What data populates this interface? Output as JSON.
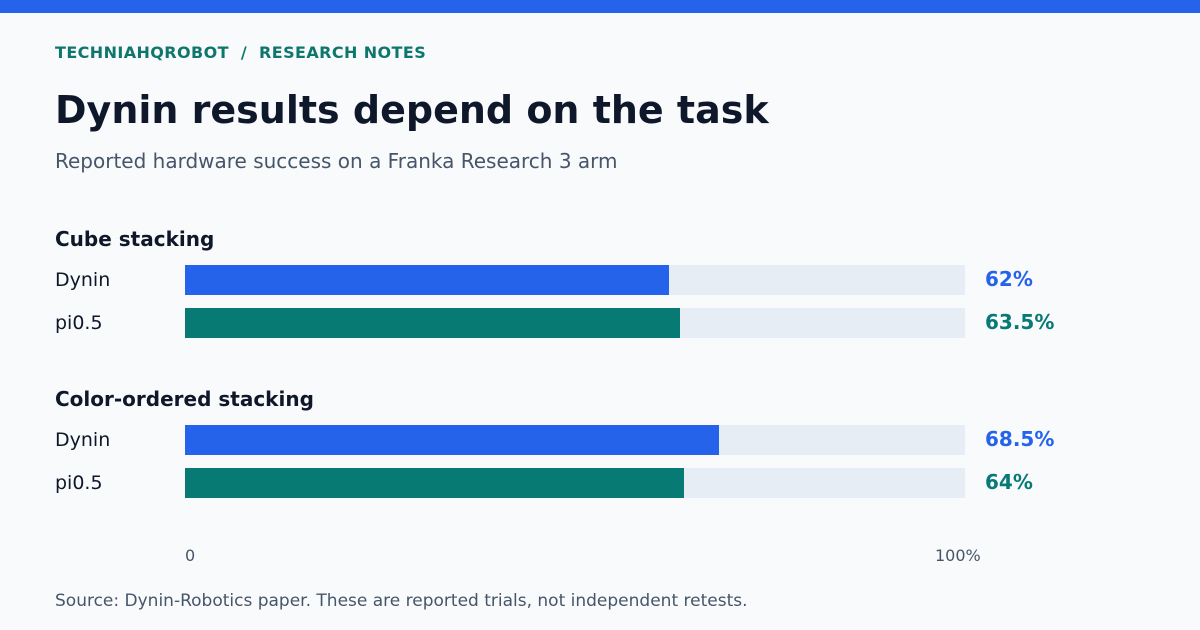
{
  "header": {
    "brand": "TECHNIAHQROBOT  /  RESEARCH NOTES",
    "title": "Dynin results depend on the task",
    "subtitle": "Reported hardware success on a Franka Research 3 arm"
  },
  "colors": {
    "accent": "#2563eb",
    "dynin": "#2563eb",
    "pi05": "#087a74",
    "track": "#e6edf5"
  },
  "chart_data": {
    "type": "bar",
    "orientation": "horizontal",
    "unit": "%",
    "xlim": [
      0,
      100
    ],
    "tick_labels": [
      "0",
      "100%"
    ],
    "groups": [
      {
        "title": "Cube stacking",
        "bars": [
          {
            "label": "Dynin",
            "value": 62,
            "value_label": "62%"
          },
          {
            "label": "pi0.5",
            "value": 63.5,
            "value_label": "63.5%"
          }
        ]
      },
      {
        "title": "Color-ordered stacking",
        "bars": [
          {
            "label": "Dynin",
            "value": 68.5,
            "value_label": "68.5%"
          },
          {
            "label": "pi0.5",
            "value": 64,
            "value_label": "64%"
          }
        ]
      }
    ]
  },
  "footer": {
    "source": "Source: Dynin-Robotics paper. These are reported trials, not independent retests."
  }
}
